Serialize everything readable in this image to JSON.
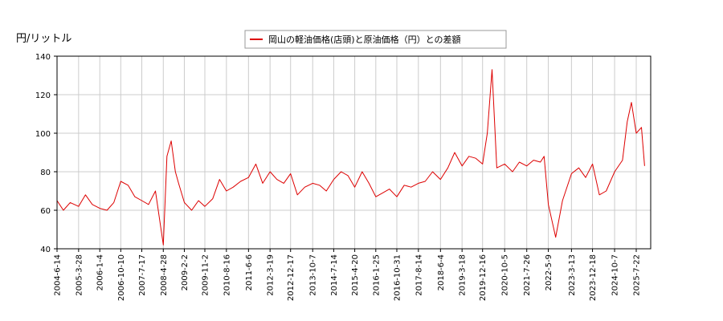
{
  "chart_data": {
    "type": "line",
    "ylabel": "円/リットル",
    "ylim": [
      40,
      140
    ],
    "yticks": [
      40,
      60,
      80,
      100,
      120,
      140
    ],
    "xticks": [
      "2004-6-14",
      "2005-3-28",
      "2006-1-4",
      "2006-10-10",
      "2007-7-17",
      "2008-4-28",
      "2009-2-2",
      "2009-11-2",
      "2010-8-16",
      "2011-6-6",
      "2012-3-19",
      "2012-12-17",
      "2013-10-7",
      "2014-7-14",
      "2015-4-20",
      "2016-1-25",
      "2016-10-31",
      "2017-8-14",
      "2018-6-4",
      "2019-3-18",
      "2019-12-16",
      "2020-10-5",
      "2021-7-26",
      "2022-5-9",
      "2023-3-13",
      "2023-12-18",
      "2024-10-7",
      "2025-7-22"
    ],
    "grid": true,
    "legend_position": "top-center",
    "series": [
      {
        "name": "岡山の軽油価格(店頭)と原油価格（円）との差額",
        "color": "#dd0000",
        "x": [
          "2004-6-14",
          "2004-9-6",
          "2004-12-6",
          "2005-3-28",
          "2005-6-27",
          "2005-9-26",
          "2006-1-4",
          "2006-4-10",
          "2006-7-10",
          "2006-10-10",
          "2007-1-15",
          "2007-4-16",
          "2007-7-17",
          "2007-10-15",
          "2008-1-15",
          "2008-4-28",
          "2008-6-16",
          "2008-8-11",
          "2008-10-6",
          "2008-11-17",
          "2009-2-2",
          "2009-5-11",
          "2009-8-10",
          "2009-11-2",
          "2010-2-15",
          "2010-5-17",
          "2010-8-16",
          "2010-11-15",
          "2011-2-21",
          "2011-6-6",
          "2011-9-12",
          "2011-12-12",
          "2012-3-19",
          "2012-6-18",
          "2012-9-17",
          "2012-12-17",
          "2013-3-18",
          "2013-6-24",
          "2013-10-7",
          "2014-1-6",
          "2014-4-7",
          "2014-7-14",
          "2014-10-20",
          "2015-1-19",
          "2015-4-20",
          "2015-7-27",
          "2015-10-26",
          "2016-1-25",
          "2016-4-25",
          "2016-7-25",
          "2016-10-31",
          "2017-2-6",
          "2017-5-8",
          "2017-8-14",
          "2017-11-13",
          "2018-2-19",
          "2018-6-4",
          "2018-9-10",
          "2018-12-10",
          "2019-3-18",
          "2019-6-17",
          "2019-9-16",
          "2019-12-16",
          "2020-2-17",
          "2020-4-20",
          "2020-6-22",
          "2020-10-5",
          "2021-1-18",
          "2021-4-19",
          "2021-7-26",
          "2021-10-25",
          "2022-1-24",
          "2022-3-14",
          "2022-5-9",
          "2022-8-15",
          "2022-11-14",
          "2023-3-13",
          "2023-6-19",
          "2023-9-18",
          "2023-12-18",
          "2024-3-18",
          "2024-6-17",
          "2024-10-7",
          "2025-1-20",
          "2025-3-24",
          "2025-5-19",
          "2025-7-22",
          "2025-9-29",
          "2025-11-10"
        ],
        "values": [
          65,
          60,
          64,
          62,
          68,
          63,
          61,
          60,
          64,
          75,
          73,
          67,
          65,
          63,
          70,
          42,
          88,
          96,
          80,
          74,
          64,
          60,
          65,
          62,
          66,
          76,
          70,
          72,
          75,
          77,
          84,
          74,
          80,
          76,
          74,
          79,
          68,
          72,
          74,
          73,
          70,
          76,
          80,
          78,
          72,
          80,
          74,
          67,
          69,
          71,
          67,
          73,
          72,
          74,
          75,
          80,
          76,
          82,
          90,
          83,
          88,
          87,
          84,
          100,
          133,
          82,
          84,
          80,
          85,
          83,
          86,
          85,
          88,
          63,
          46,
          65,
          79,
          82,
          77,
          84,
          68,
          70,
          80,
          86,
          106,
          116,
          100,
          103,
          83
        ]
      }
    ]
  }
}
